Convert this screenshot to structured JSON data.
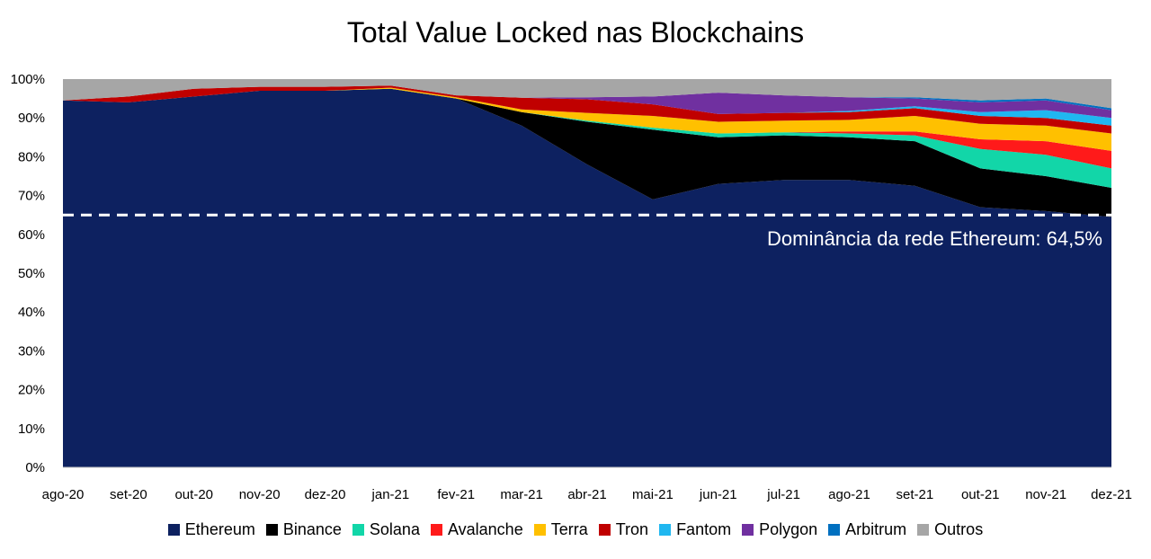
{
  "chart_data": {
    "type": "area",
    "stacked": true,
    "percent": true,
    "title": "Total Value Locked nas Blockchains",
    "ylim": [
      0,
      100
    ],
    "y_ticks": [
      "0%",
      "10%",
      "20%",
      "30%",
      "40%",
      "50%",
      "60%",
      "70%",
      "80%",
      "90%",
      "100%"
    ],
    "categories": [
      "ago-20",
      "set-20",
      "out-20",
      "nov-20",
      "dez-20",
      "jan-21",
      "fev-21",
      "mar-21",
      "abr-21",
      "mai-21",
      "jun-21",
      "jul-21",
      "ago-21",
      "set-21",
      "out-21",
      "nov-21",
      "dez-21"
    ],
    "series": [
      {
        "name": "Ethereum",
        "color": "#0d2160",
        "values": [
          94.5,
          94.0,
          95.5,
          97.0,
          97.0,
          97.5,
          95.0,
          88.0,
          78.0,
          69.0,
          73.0,
          74.0,
          74.0,
          72.5,
          67.0,
          66.0,
          64.5
        ]
      },
      {
        "name": "Binance",
        "color": "#000000",
        "values": [
          0.0,
          0.0,
          0.0,
          0.0,
          0.0,
          0.0,
          0.0,
          3.5,
          11.0,
          18.0,
          12.0,
          11.5,
          11.0,
          11.5,
          10.0,
          9.0,
          7.5
        ]
      },
      {
        "name": "Solana",
        "color": "#12d6a8",
        "values": [
          0.0,
          0.0,
          0.0,
          0.0,
          0.0,
          0.0,
          0.0,
          0.0,
          0.3,
          0.5,
          1.0,
          0.8,
          1.0,
          1.5,
          5.0,
          5.5,
          5.0
        ]
      },
      {
        "name": "Avalanche",
        "color": "#ff1a1a",
        "values": [
          0.0,
          0.0,
          0.0,
          0.0,
          0.0,
          0.0,
          0.0,
          0.0,
          0.0,
          0.0,
          0.0,
          0.0,
          0.5,
          1.0,
          2.5,
          3.5,
          4.5
        ]
      },
      {
        "name": "Terra",
        "color": "#ffc000",
        "values": [
          0.0,
          0.0,
          0.0,
          0.0,
          0.0,
          0.3,
          0.3,
          0.7,
          2.0,
          3.0,
          3.0,
          3.0,
          3.0,
          4.0,
          4.0,
          4.0,
          4.5
        ]
      },
      {
        "name": "Tron",
        "color": "#c00000",
        "values": [
          0.0,
          1.5,
          2.0,
          1.0,
          1.0,
          0.5,
          0.5,
          3.0,
          3.5,
          3.0,
          2.0,
          2.0,
          2.0,
          2.0,
          2.0,
          2.0,
          2.0
        ]
      },
      {
        "name": "Fantom",
        "color": "#20b7f0",
        "values": [
          0.0,
          0.0,
          0.0,
          0.0,
          0.0,
          0.0,
          0.0,
          0.0,
          0.0,
          0.0,
          0.0,
          0.0,
          0.3,
          0.5,
          1.0,
          2.0,
          2.0
        ]
      },
      {
        "name": "Polygon",
        "color": "#7030a0",
        "values": [
          0.0,
          0.0,
          0.0,
          0.0,
          0.0,
          0.0,
          0.0,
          0.0,
          0.5,
          2.0,
          5.5,
          4.5,
          3.5,
          2.0,
          2.5,
          2.5,
          2.0
        ]
      },
      {
        "name": "Arbitrum",
        "color": "#0070c0",
        "values": [
          0.0,
          0.0,
          0.0,
          0.0,
          0.0,
          0.0,
          0.0,
          0.0,
          0.0,
          0.0,
          0.0,
          0.0,
          0.0,
          0.3,
          0.5,
          0.5,
          0.5
        ]
      },
      {
        "name": "Outros",
        "color": "#a6a6a6",
        "values": [
          5.5,
          4.5,
          2.5,
          2.0,
          2.0,
          1.7,
          4.2,
          4.8,
          4.7,
          4.5,
          3.5,
          4.2,
          4.7,
          4.7,
          5.5,
          5.0,
          7.5
        ]
      }
    ],
    "reference_line": {
      "value": 65,
      "style": "dashed",
      "color": "#ffffff"
    },
    "annotation": "Dominância da rede Ethereum: 64,5%",
    "legend_position": "bottom",
    "grid": false
  }
}
